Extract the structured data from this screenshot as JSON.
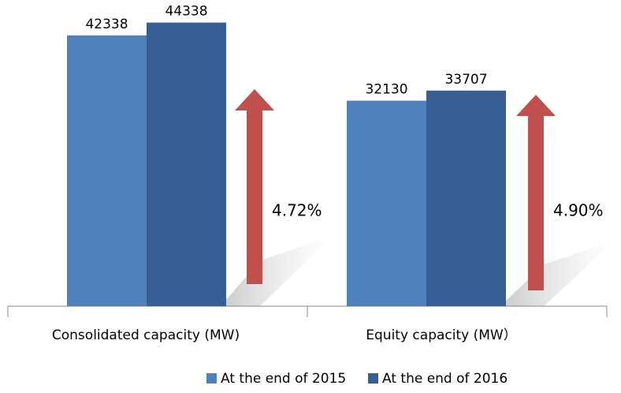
{
  "chart_data": {
    "type": "bar",
    "categories": [
      "Consolidated capacity (MW)",
      "Equity capacity (MW）"
    ],
    "series": [
      {
        "name": "At the end of 2015",
        "color": "#4f81bd",
        "values": [
          42338,
          32130
        ]
      },
      {
        "name": "At the end of 2016",
        "color": "#385f93",
        "values": [
          44338,
          33707
        ]
      }
    ],
    "ylim": [
      0,
      45400
    ],
    "annotations": [
      "4.72%",
      "4.90%"
    ],
    "annotation_color": "#c0504d"
  }
}
